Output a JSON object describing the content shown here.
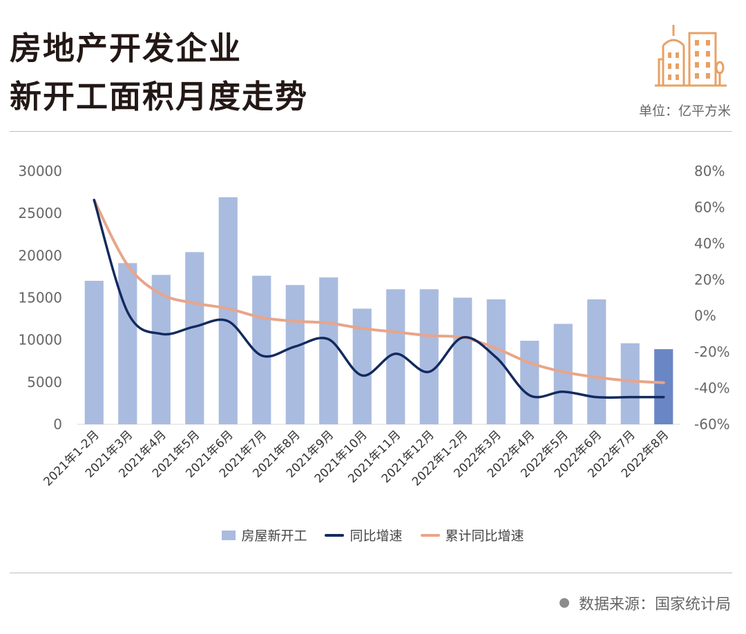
{
  "header": {
    "title_line1": "房地产开发企业",
    "title_line2": "新开工面积月度走势",
    "unit": "单位：亿平方米",
    "logo_icon": "city-buildings-icon"
  },
  "footer": {
    "source": "数据来源：国家统计局"
  },
  "colors": {
    "bar": "#a9bbdf",
    "bar_highlight": "#6a87c5",
    "yoy_line": "#132a5e",
    "cumulative_line": "#e8a58a",
    "logo": "#e9a063"
  },
  "chart_data": {
    "type": "bar",
    "categories": [
      "2021年1-2月",
      "2021年3月",
      "2021年4月",
      "2021年5月",
      "2021年6月",
      "2021年7月",
      "2021年8月",
      "2021年9月",
      "2021年10月",
      "2021年11月",
      "2021年12月",
      "2022年1-2月",
      "2022年3月",
      "2022年4月",
      "2022年5月",
      "2022年6月",
      "2022年7月",
      "2022年8月"
    ],
    "series": [
      {
        "name": "房屋新开工",
        "type": "bar",
        "axis": "left",
        "values": [
          17000,
          19100,
          17700,
          20400,
          26900,
          17600,
          16500,
          17400,
          13700,
          16000,
          16000,
          15000,
          14800,
          9900,
          11900,
          14800,
          9600,
          8900
        ]
      },
      {
        "name": "同比增速",
        "type": "line",
        "axis": "right",
        "unit": "%",
        "values": [
          64,
          2,
          -10,
          -6,
          -3,
          -22,
          -17,
          -13,
          -33,
          -21,
          -31,
          -12,
          -23,
          -44,
          -42,
          -45,
          -45,
          -45
        ]
      },
      {
        "name": "累计同比增速",
        "type": "line",
        "axis": "right",
        "unit": "%",
        "values": [
          64,
          28,
          12,
          7,
          4,
          -1,
          -3,
          -4,
          -7,
          -9,
          -11,
          -12,
          -18,
          -26,
          -31,
          -34,
          -36,
          -37
        ]
      }
    ],
    "y_left": {
      "min": 0,
      "max": 30000,
      "ticks": [
        "0",
        "5000",
        "10000",
        "15000",
        "20000",
        "25000",
        "30000"
      ]
    },
    "y_right": {
      "min": -60,
      "max": 80,
      "ticks": [
        "-60%",
        "-40%",
        "-20%",
        "0%",
        "20%",
        "40%",
        "60%",
        "80%"
      ]
    },
    "highlight_index": 17,
    "grid": false,
    "legend_position": "bottom"
  }
}
